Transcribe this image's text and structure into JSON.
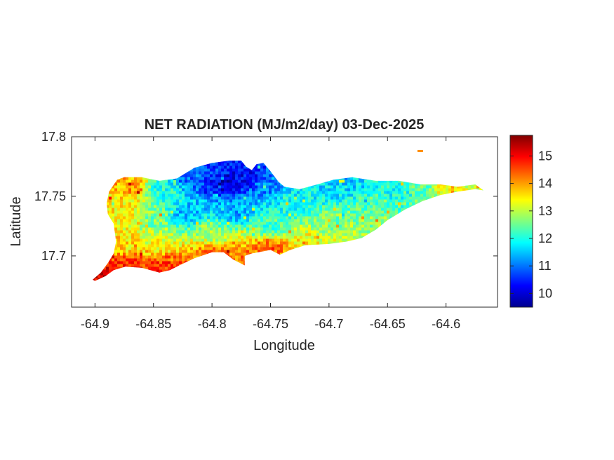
{
  "chart_data": {
    "type": "heatmap",
    "title": "NET RADIATION (MJ/m2/day) 03-Dec-2025",
    "xlabel": "Longitude",
    "ylabel": "Latitude",
    "xlim": [
      -64.92,
      -64.556
    ],
    "ylim": [
      17.657,
      17.8
    ],
    "x_ticks": [
      {
        "value": -64.9,
        "label": "-64.9"
      },
      {
        "value": -64.85,
        "label": "-64.85"
      },
      {
        "value": -64.8,
        "label": "-64.8"
      },
      {
        "value": -64.75,
        "label": "-64.75"
      },
      {
        "value": -64.7,
        "label": "-64.7"
      },
      {
        "value": -64.65,
        "label": "-64.65"
      },
      {
        "value": -64.6,
        "label": "-64.6"
      }
    ],
    "y_ticks": [
      {
        "value": 17.7,
        "label": "17.7"
      },
      {
        "value": 17.75,
        "label": "17.75"
      },
      {
        "value": 17.8,
        "label": "17.8"
      }
    ],
    "colorbar": {
      "colormap": "jet",
      "range": [
        9.5,
        15.75
      ],
      "ticks": [
        {
          "value": 10,
          "label": "10"
        },
        {
          "value": 11,
          "label": "11"
        },
        {
          "value": 12,
          "label": "12"
        },
        {
          "value": 13,
          "label": "13"
        },
        {
          "value": 14,
          "label": "14"
        },
        {
          "value": 15,
          "label": "15"
        }
      ]
    },
    "region_outline": [
      [
        -64.9,
        17.679
      ],
      [
        -64.891,
        17.683
      ],
      [
        -64.884,
        17.688
      ],
      [
        -64.874,
        17.691
      ],
      [
        -64.86,
        17.69
      ],
      [
        -64.845,
        17.686
      ],
      [
        -64.836,
        17.688
      ],
      [
        -64.828,
        17.692
      ],
      [
        -64.815,
        17.698
      ],
      [
        -64.8,
        17.703
      ],
      [
        -64.79,
        17.703
      ],
      [
        -64.782,
        17.697
      ],
      [
        -64.772,
        17.692
      ],
      [
        -64.772,
        17.7
      ],
      [
        -64.766,
        17.702
      ],
      [
        -64.75,
        17.705
      ],
      [
        -64.742,
        17.701
      ],
      [
        -64.733,
        17.705
      ],
      [
        -64.72,
        17.709
      ],
      [
        -64.7,
        17.71
      ],
      [
        -64.685,
        17.712
      ],
      [
        -64.672,
        17.715
      ],
      [
        -64.66,
        17.722
      ],
      [
        -64.65,
        17.73
      ],
      [
        -64.635,
        17.739
      ],
      [
        -64.62,
        17.746
      ],
      [
        -64.605,
        17.751
      ],
      [
        -64.59,
        17.754
      ],
      [
        -64.575,
        17.756
      ],
      [
        -64.568,
        17.755
      ],
      [
        -64.575,
        17.76
      ],
      [
        -64.59,
        17.758
      ],
      [
        -64.605,
        17.76
      ],
      [
        -64.622,
        17.76
      ],
      [
        -64.64,
        17.763
      ],
      [
        -64.66,
        17.763
      ],
      [
        -64.68,
        17.766
      ],
      [
        -64.696,
        17.764
      ],
      [
        -64.71,
        17.76
      ],
      [
        -64.725,
        17.756
      ],
      [
        -64.738,
        17.758
      ],
      [
        -64.743,
        17.762
      ],
      [
        -64.75,
        17.771
      ],
      [
        -64.756,
        17.778
      ],
      [
        -64.762,
        17.777
      ],
      [
        -64.766,
        17.772
      ],
      [
        -64.771,
        17.775
      ],
      [
        -64.775,
        17.78
      ],
      [
        -64.785,
        17.78
      ],
      [
        -64.8,
        17.778
      ],
      [
        -64.815,
        17.774
      ],
      [
        -64.83,
        17.765
      ],
      [
        -64.845,
        17.763
      ],
      [
        -64.86,
        17.766
      ],
      [
        -64.875,
        17.766
      ],
      [
        -64.881,
        17.764
      ],
      [
        -64.888,
        17.754
      ],
      [
        -64.89,
        17.744
      ],
      [
        -64.889,
        17.735
      ],
      [
        -64.884,
        17.727
      ],
      [
        -64.882,
        17.712
      ],
      [
        -64.884,
        17.702
      ],
      [
        -64.889,
        17.694
      ],
      [
        -64.895,
        17.686
      ],
      [
        -64.902,
        17.68
      ]
    ],
    "islet": [
      -64.622,
      17.788
    ],
    "value_field_anchors": [
      {
        "lon": -64.895,
        "lat": 17.682,
        "value": 15.2
      },
      {
        "lon": -64.87,
        "lat": 17.692,
        "value": 14.8
      },
      {
        "lon": -64.84,
        "lat": 17.69,
        "value": 14.7
      },
      {
        "lon": -64.8,
        "lat": 17.702,
        "value": 14.2
      },
      {
        "lon": -64.775,
        "lat": 17.697,
        "value": 14.3
      },
      {
        "lon": -64.75,
        "lat": 17.706,
        "value": 14.4
      },
      {
        "lon": -64.72,
        "lat": 17.712,
        "value": 13.4
      },
      {
        "lon": -64.69,
        "lat": 17.714,
        "value": 13.1
      },
      {
        "lon": -64.875,
        "lat": 17.71,
        "value": 13.6
      },
      {
        "lon": -64.875,
        "lat": 17.74,
        "value": 13.5
      },
      {
        "lon": -64.87,
        "lat": 17.758,
        "value": 14.0
      },
      {
        "lon": -64.84,
        "lat": 17.755,
        "value": 12.0
      },
      {
        "lon": -64.82,
        "lat": 17.765,
        "value": 11.0
      },
      {
        "lon": -64.8,
        "lat": 17.77,
        "value": 10.6
      },
      {
        "lon": -64.79,
        "lat": 17.762,
        "value": 10.0
      },
      {
        "lon": -64.77,
        "lat": 17.767,
        "value": 10.3
      },
      {
        "lon": -64.75,
        "lat": 17.76,
        "value": 11.1
      },
      {
        "lon": -64.82,
        "lat": 17.735,
        "value": 11.4
      },
      {
        "lon": -64.78,
        "lat": 17.738,
        "value": 11.3
      },
      {
        "lon": -64.85,
        "lat": 17.73,
        "value": 12.6
      },
      {
        "lon": -64.85,
        "lat": 17.71,
        "value": 13.3
      },
      {
        "lon": -64.8,
        "lat": 17.72,
        "value": 12.8
      },
      {
        "lon": -64.75,
        "lat": 17.725,
        "value": 12.3
      },
      {
        "lon": -64.73,
        "lat": 17.745,
        "value": 11.9
      },
      {
        "lon": -64.7,
        "lat": 17.755,
        "value": 11.7
      },
      {
        "lon": -64.68,
        "lat": 17.76,
        "value": 11.6
      },
      {
        "lon": -64.7,
        "lat": 17.73,
        "value": 12.6
      },
      {
        "lon": -64.66,
        "lat": 17.745,
        "value": 12.3
      },
      {
        "lon": -64.64,
        "lat": 17.754,
        "value": 11.9
      },
      {
        "lon": -64.62,
        "lat": 17.755,
        "value": 12.5
      },
      {
        "lon": -64.6,
        "lat": 17.757,
        "value": 13.4
      },
      {
        "lon": -64.58,
        "lat": 17.756,
        "value": 13.1
      },
      {
        "lon": -64.66,
        "lat": 17.728,
        "value": 12.7
      }
    ]
  }
}
